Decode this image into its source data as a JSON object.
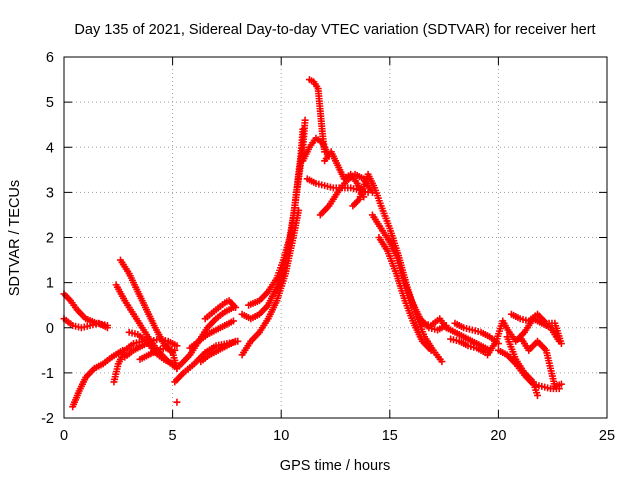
{
  "chart_data": {
    "type": "scatter",
    "title": "Day 135 of 2021, Sidereal Day-to-day VTEC variation (SDTVAR) for receiver hert",
    "xlabel": "GPS time / hours",
    "ylabel": "SDTVAR / TECUs",
    "xlim": [
      0,
      25
    ],
    "ylim": [
      -2,
      6
    ],
    "xticks": [
      0,
      5,
      10,
      15,
      20,
      25
    ],
    "yticks": [
      -2,
      -1,
      0,
      1,
      2,
      3,
      4,
      5,
      6
    ],
    "grid": true,
    "marker": "plus",
    "color": "#ff0000",
    "series": [
      {
        "name": "SDTVAR",
        "tracks": [
          [
            [
              0.0,
              0.75
            ],
            [
              0.3,
              0.6
            ],
            [
              0.6,
              0.4
            ],
            [
              1.0,
              0.2
            ],
            [
              1.5,
              0.1
            ],
            [
              2.0,
              0.05
            ]
          ],
          [
            [
              0.0,
              0.2
            ],
            [
              0.4,
              0.05
            ],
            [
              0.8,
              0.0
            ],
            [
              1.2,
              0.05
            ],
            [
              1.6,
              0.1
            ],
            [
              2.0,
              0.0
            ]
          ],
          [
            [
              0.4,
              -1.75
            ],
            [
              0.7,
              -1.4
            ],
            [
              1.0,
              -1.1
            ],
            [
              1.4,
              -0.9
            ],
            [
              1.8,
              -0.8
            ],
            [
              2.2,
              -0.65
            ],
            [
              2.7,
              -0.5
            ]
          ],
          [
            [
              2.3,
              -1.2
            ],
            [
              2.5,
              -0.8
            ],
            [
              2.8,
              -0.5
            ],
            [
              3.2,
              -0.35
            ],
            [
              3.6,
              -0.3
            ]
          ],
          [
            [
              2.4,
              0.95
            ],
            [
              2.8,
              0.6
            ],
            [
              3.2,
              0.3
            ],
            [
              3.6,
              0.0
            ],
            [
              4.0,
              -0.3
            ],
            [
              4.4,
              -0.55
            ],
            [
              4.8,
              -0.75
            ],
            [
              5.2,
              -0.9
            ]
          ],
          [
            [
              2.6,
              1.5
            ],
            [
              3.0,
              1.2
            ],
            [
              3.4,
              0.8
            ],
            [
              3.8,
              0.4
            ],
            [
              4.2,
              0.0
            ],
            [
              4.6,
              -0.35
            ],
            [
              5.0,
              -0.55
            ]
          ],
          [
            [
              2.8,
              -0.65
            ],
            [
              3.2,
              -0.5
            ],
            [
              3.6,
              -0.4
            ],
            [
              4.0,
              -0.3
            ],
            [
              4.4,
              -0.25
            ],
            [
              4.8,
              -0.3
            ],
            [
              5.2,
              -0.4
            ]
          ],
          [
            [
              3.0,
              -0.1
            ],
            [
              3.4,
              -0.15
            ],
            [
              3.8,
              -0.3
            ],
            [
              4.2,
              -0.55
            ],
            [
              4.6,
              -0.7
            ],
            [
              5.0,
              -0.8
            ]
          ],
          [
            [
              3.5,
              -0.7
            ],
            [
              3.9,
              -0.6
            ],
            [
              4.3,
              -0.5
            ],
            [
              4.7,
              -0.45
            ],
            [
              5.1,
              -0.5
            ]
          ],
          [
            [
              4.6,
              -0.4
            ],
            [
              5.0,
              -0.55
            ],
            [
              5.2,
              -0.9
            ]
          ],
          [
            [
              5.2,
              -1.65
            ]
          ],
          [
            [
              5.1,
              -1.2
            ],
            [
              5.5,
              -1.0
            ],
            [
              6.0,
              -0.8
            ],
            [
              6.5,
              -0.55
            ],
            [
              7.0,
              -0.4
            ],
            [
              7.5,
              -0.35
            ],
            [
              8.0,
              -0.3
            ]
          ],
          [
            [
              5.3,
              -0.85
            ],
            [
              5.8,
              -0.6
            ],
            [
              6.2,
              -0.3
            ],
            [
              6.6,
              0.0
            ],
            [
              7.0,
              0.2
            ],
            [
              7.4,
              0.35
            ],
            [
              7.8,
              0.45
            ]
          ],
          [
            [
              5.8,
              -0.45
            ],
            [
              6.2,
              -0.3
            ],
            [
              6.6,
              -0.15
            ],
            [
              7.0,
              -0.05
            ],
            [
              7.4,
              0.05
            ],
            [
              7.8,
              0.15
            ]
          ],
          [
            [
              6.3,
              -0.75
            ],
            [
              6.7,
              -0.6
            ],
            [
              7.1,
              -0.5
            ],
            [
              7.5,
              -0.4
            ],
            [
              7.9,
              -0.3
            ]
          ],
          [
            [
              6.5,
              0.2
            ],
            [
              7.0,
              0.4
            ],
            [
              7.4,
              0.55
            ],
            [
              7.6,
              0.6
            ],
            [
              7.9,
              0.45
            ]
          ],
          [
            [
              8.2,
              -0.6
            ],
            [
              8.6,
              -0.3
            ],
            [
              9.0,
              -0.1
            ],
            [
              9.4,
              0.2
            ],
            [
              9.8,
              0.6
            ],
            [
              10.2,
              1.2
            ],
            [
              10.6,
              2.1
            ],
            [
              10.8,
              2.6
            ]
          ],
          [
            [
              8.2,
              0.3
            ],
            [
              8.6,
              0.2
            ],
            [
              9.0,
              0.3
            ],
            [
              9.4,
              0.5
            ],
            [
              9.8,
              0.9
            ],
            [
              10.2,
              1.5
            ],
            [
              10.5,
              2.2
            ],
            [
              10.7,
              3.0
            ],
            [
              10.9,
              3.8
            ],
            [
              11.0,
              4.4
            ]
          ],
          [
            [
              8.5,
              0.5
            ],
            [
              9.0,
              0.6
            ],
            [
              9.4,
              0.8
            ],
            [
              9.8,
              1.1
            ],
            [
              10.1,
              1.5
            ],
            [
              10.4,
              2.0
            ],
            [
              10.6,
              2.6
            ],
            [
              10.8,
              3.3
            ],
            [
              11.0,
              4.0
            ],
            [
              11.1,
              4.6
            ]
          ],
          [
            [
              11.3,
              5.5
            ],
            [
              11.5,
              5.45
            ],
            [
              11.7,
              5.3
            ],
            [
              11.8,
              4.8
            ],
            [
              11.9,
              4.3
            ],
            [
              12.0,
              3.9
            ]
          ],
          [
            [
              11.0,
              3.7
            ],
            [
              11.3,
              4.0
            ],
            [
              11.6,
              4.2
            ],
            [
              11.9,
              4.1
            ],
            [
              12.2,
              3.8
            ]
          ],
          [
            [
              11.2,
              3.3
            ],
            [
              11.6,
              3.2
            ],
            [
              12.0,
              3.15
            ],
            [
              12.4,
              3.1
            ],
            [
              12.8,
              3.1
            ],
            [
              13.2,
              3.1
            ],
            [
              13.6,
              3.05
            ],
            [
              14.0,
              3.0
            ]
          ],
          [
            [
              11.8,
              2.5
            ],
            [
              12.2,
              2.7
            ],
            [
              12.6,
              3.0
            ],
            [
              13.0,
              3.25
            ],
            [
              13.4,
              3.4
            ],
            [
              13.8,
              3.3
            ],
            [
              14.2,
              3.0
            ]
          ],
          [
            [
              12.0,
              3.7
            ],
            [
              12.3,
              3.9
            ],
            [
              12.6,
              3.6
            ],
            [
              12.9,
              3.3
            ],
            [
              13.2,
              3.4
            ],
            [
              13.5,
              3.2
            ],
            [
              13.8,
              2.9
            ]
          ],
          [
            [
              13.3,
              2.7
            ],
            [
              13.6,
              2.85
            ],
            [
              14.0,
              3.4
            ],
            [
              14.3,
              3.1
            ],
            [
              14.6,
              2.7
            ],
            [
              15.0,
              2.2
            ],
            [
              15.4,
              1.6
            ],
            [
              15.8,
              0.9
            ],
            [
              16.2,
              0.3
            ],
            [
              16.6,
              -0.2
            ],
            [
              17.0,
              -0.5
            ],
            [
              17.4,
              -0.75
            ]
          ],
          [
            [
              14.2,
              2.5
            ],
            [
              14.6,
              2.2
            ],
            [
              15.0,
              1.9
            ],
            [
              15.3,
              1.6
            ],
            [
              15.6,
              1.1
            ],
            [
              16.0,
              0.6
            ],
            [
              16.4,
              0.2
            ],
            [
              16.8,
              0.0
            ],
            [
              17.2,
              -0.05
            ],
            [
              17.6,
              0.05
            ]
          ],
          [
            [
              14.5,
              2.0
            ],
            [
              14.9,
              1.7
            ],
            [
              15.3,
              1.2
            ],
            [
              15.7,
              0.6
            ],
            [
              16.1,
              0.1
            ],
            [
              16.5,
              -0.3
            ],
            [
              16.9,
              -0.5
            ]
          ],
          [
            [
              16.5,
              0.1
            ],
            [
              16.9,
              0.05
            ],
            [
              17.3,
              0.2
            ],
            [
              17.6,
              0.0
            ]
          ],
          [
            [
              17.6,
              0.0
            ],
            [
              18.0,
              -0.1
            ],
            [
              18.4,
              -0.2
            ],
            [
              18.8,
              -0.3
            ],
            [
              19.2,
              -0.4
            ],
            [
              19.6,
              -0.5
            ]
          ],
          [
            [
              17.8,
              -0.25
            ],
            [
              18.2,
              -0.3
            ],
            [
              18.6,
              -0.4
            ],
            [
              19.0,
              -0.45
            ],
            [
              19.4,
              -0.55
            ]
          ],
          [
            [
              18.0,
              0.1
            ],
            [
              18.4,
              0.0
            ],
            [
              18.8,
              -0.05
            ],
            [
              19.2,
              -0.1
            ],
            [
              19.6,
              -0.2
            ],
            [
              20.0,
              -0.35
            ]
          ],
          [
            [
              19.5,
              -0.6
            ],
            [
              19.9,
              -0.3
            ],
            [
              20.2,
              0.15
            ],
            [
              20.5,
              -0.1
            ],
            [
              20.8,
              -0.3
            ],
            [
              21.2,
              -0.1
            ],
            [
              21.6,
              0.2
            ],
            [
              22.0,
              0.1
            ],
            [
              22.4,
              0.0
            ],
            [
              22.8,
              -0.3
            ]
          ],
          [
            [
              20.0,
              -0.5
            ],
            [
              20.4,
              -0.6
            ],
            [
              20.8,
              -0.8
            ],
            [
              21.2,
              -1.05
            ],
            [
              21.6,
              -1.25
            ],
            [
              22.0,
              -1.3
            ],
            [
              22.4,
              -1.35
            ],
            [
              22.8,
              -1.35
            ]
          ],
          [
            [
              20.4,
              -0.2
            ],
            [
              20.8,
              -0.7
            ],
            [
              21.2,
              -1.0
            ],
            [
              21.6,
              -1.2
            ],
            [
              21.8,
              -1.5
            ]
          ],
          [
            [
              20.6,
              0.3
            ],
            [
              21.0,
              0.2
            ],
            [
              21.4,
              0.15
            ],
            [
              21.8,
              0.3
            ],
            [
              22.2,
              0.1
            ],
            [
              22.6,
              0.1
            ],
            [
              22.9,
              -0.35
            ]
          ],
          [
            [
              21.0,
              -0.2
            ],
            [
              21.4,
              -0.5
            ],
            [
              21.8,
              -0.3
            ],
            [
              22.2,
              -0.5
            ],
            [
              22.6,
              -1.3
            ],
            [
              22.9,
              -1.25
            ]
          ]
        ]
      }
    ]
  }
}
